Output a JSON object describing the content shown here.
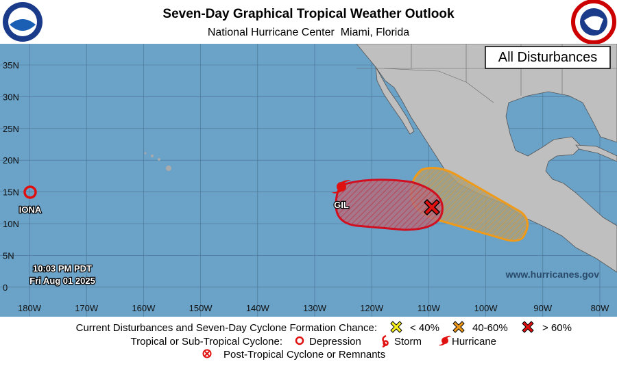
{
  "header": {
    "title": "Seven-Day Graphical Tropical Weather Outlook",
    "subtitle": "National Hurricane Center  Miami, Florida"
  },
  "map": {
    "panel_label": "All Disturbances",
    "latitude_labels": [
      "35N",
      "30N",
      "25N",
      "20N",
      "15N",
      "10N",
      "5N",
      "0"
    ],
    "longitude_labels": [
      "180W",
      "170W",
      "160W",
      "150W",
      "140W",
      "130W",
      "120W",
      "110W",
      "100W",
      "90W",
      "80W"
    ],
    "storms": [
      {
        "label": "IONA"
      },
      {
        "label": "GIL"
      }
    ],
    "timestamp": [
      "10:03 PM PDT",
      "Fri Aug 01 2025"
    ],
    "website": "www.hurricanes.gov"
  },
  "legend": {
    "formation_title": "Current Disturbances and Seven-Day Cyclone Formation Chance:",
    "formation_levels": [
      "< 40%",
      "40-60%",
      "> 60%"
    ],
    "cyclone_title": "Tropical or Sub-Tropical Cyclone:",
    "cyclone_types": [
      "Depression",
      "Storm",
      "Hurricane"
    ],
    "post_tropical": "Post-Tropical Cyclone or Remnants"
  }
}
